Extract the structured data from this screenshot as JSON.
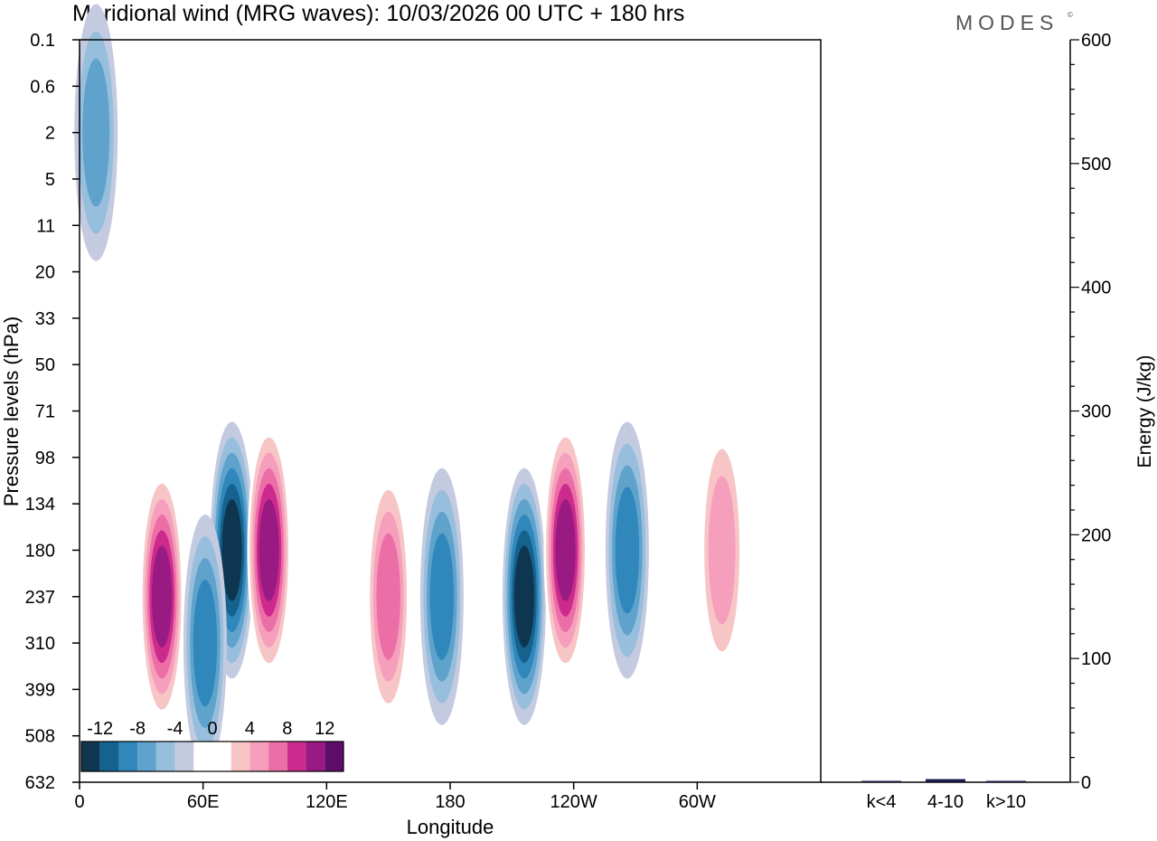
{
  "title": "Meridional wind (MRG waves):  10/03/2026  00 UTC  + 180 hrs",
  "brand": "MODES",
  "brand_mark": "©",
  "chart_data": [
    {
      "type": "heatmap",
      "variable": "meridional wind",
      "xlabel": "Longitude",
      "ylabel": "Pressure levels (hPa)",
      "x_ticks": [
        "0",
        "60E",
        "120E",
        "180",
        "120W",
        "60W"
      ],
      "x_tick_values": [
        0,
        60,
        120,
        180,
        240,
        300
      ],
      "xlim": [
        0,
        360
      ],
      "y_levels": [
        "0.1",
        "0.6",
        "2",
        "5",
        "11",
        "20",
        "33",
        "50",
        "71",
        "98",
        "134",
        "180",
        "237",
        "310",
        "399",
        "508",
        "632"
      ],
      "colorbar": {
        "labels": [
          "-12",
          "-8",
          "-4",
          "0",
          "4",
          "8",
          "12"
        ],
        "levels": [
          -14,
          -12,
          -10,
          -8,
          -6,
          -4,
          -2,
          2,
          4,
          6,
          8,
          10,
          12,
          14
        ],
        "colors": [
          "#0f3650",
          "#15628f",
          "#2f87bb",
          "#5fa2cc",
          "#97bfdd",
          "#c4cbe0",
          "#ffffff",
          "#ffffff",
          "#f7c5c6",
          "#f59fbc",
          "#ec6ea6",
          "#cc2a8c",
          "#9a1a83",
          "#5e0d6b"
        ]
      },
      "features": [
        {
          "lon": 40,
          "level": "237",
          "value": 12
        },
        {
          "lon": 74,
          "level": "180",
          "value": -12
        },
        {
          "lon": 92,
          "level": "180",
          "value": 12
        },
        {
          "lon": 61,
          "level": "310",
          "value": -8
        },
        {
          "lon": 150,
          "level": "237",
          "value": 8
        },
        {
          "lon": 176,
          "level": "237",
          "value": -8
        },
        {
          "lon": 216,
          "level": "237",
          "value": -12
        },
        {
          "lon": 236,
          "level": "180",
          "value": 12
        },
        {
          "lon": 266,
          "level": "180",
          "value": -8
        },
        {
          "lon": 312,
          "level": "180",
          "value": 6
        },
        {
          "lon": 8,
          "level": "2",
          "value": -6
        }
      ]
    },
    {
      "type": "bar",
      "categories": [
        "k<4",
        "4-10",
        "k>10"
      ],
      "values": [
        0.5,
        2.5,
        0.5
      ],
      "ylabel": "Energy (J/kg)",
      "ylim": [
        0,
        600
      ],
      "y_ticks": [
        "0",
        "100",
        "200",
        "300",
        "400",
        "500",
        "600"
      ],
      "y_tick_values": [
        0,
        100,
        200,
        300,
        400,
        500,
        600
      ],
      "color": "#1a1a4a"
    }
  ]
}
